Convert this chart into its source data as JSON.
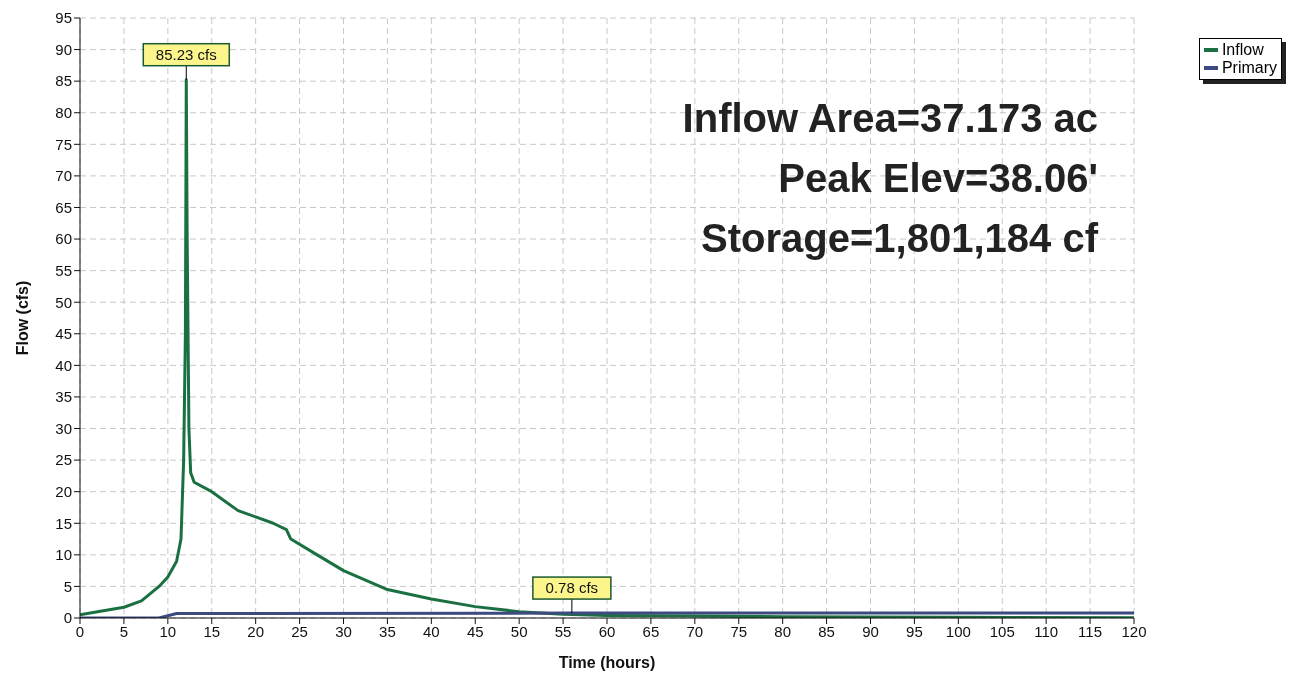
{
  "chart_data": {
    "type": "line",
    "xlabel": "Time (hours)",
    "ylabel": "Flow (cfs)",
    "xlim": [
      0,
      120
    ],
    "xticks": [
      0,
      5,
      10,
      15,
      20,
      25,
      30,
      35,
      40,
      45,
      50,
      55,
      60,
      65,
      70,
      75,
      80,
      85,
      90,
      95,
      100,
      105,
      110,
      115,
      120
    ],
    "ylim": [
      0,
      95
    ],
    "yticks": [
      0,
      5,
      10,
      15,
      20,
      25,
      30,
      35,
      40,
      45,
      50,
      55,
      60,
      65,
      70,
      75,
      80,
      85,
      90,
      95
    ],
    "grid": true,
    "legend": "top right",
    "marker": "none",
    "line_style": "solid",
    "series": [
      {
        "name": "Inflow",
        "color": "#1a7040",
        "x": [
          0,
          2,
          5,
          7,
          9,
          10,
          11,
          11.5,
          11.8,
          12,
          12.1,
          12.2,
          12.3,
          12.4,
          12.6,
          13,
          15,
          18,
          20,
          22,
          23.5,
          24,
          27,
          30,
          35,
          40,
          45,
          50,
          55,
          60,
          70,
          80,
          100,
          120
        ],
        "values": [
          0.5,
          1,
          1.7,
          2.7,
          5,
          6.5,
          9,
          12.5,
          25,
          45,
          85.23,
          60,
          45,
          30,
          23,
          21.5,
          20,
          17,
          16,
          15,
          14,
          12.5,
          10,
          7.5,
          4.5,
          3,
          1.8,
          1,
          0.6,
          0.4,
          0.3,
          0.2,
          0.1,
          0.05
        ]
      },
      {
        "name": "Primary",
        "color": "#3d4a80",
        "x": [
          0,
          9,
          11,
          56,
          120
        ],
        "values": [
          0,
          0,
          0.7,
          0.78,
          0.78
        ]
      }
    ],
    "annotations": [
      {
        "text": "85.23 cfs",
        "x": 12.1,
        "y": 85.23
      },
      {
        "text": "0.78 cfs",
        "x": 56,
        "y": 0.78
      },
      "Inflow Area=37.173 ac",
      "Peak Elev=38.06'",
      "Storage=1,801,184 cf"
    ]
  }
}
